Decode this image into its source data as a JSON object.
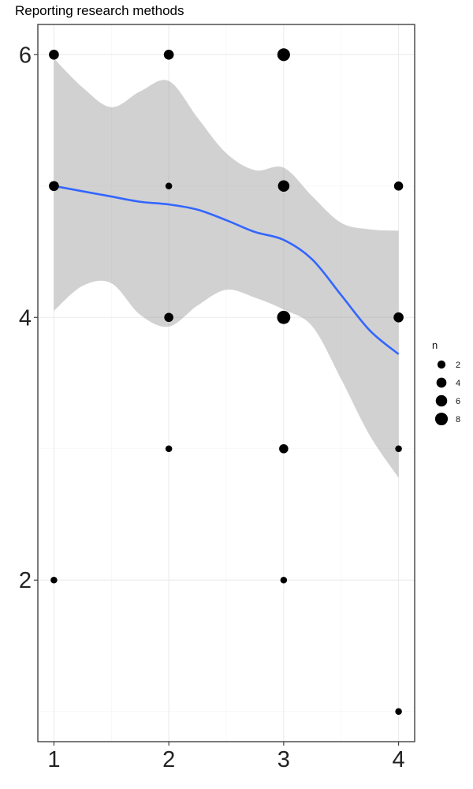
{
  "chart_data": {
    "type": "scatter",
    "title": "Reporting research methods",
    "xlabel": "",
    "ylabel": "",
    "xlim": [
      0.86,
      4.14
    ],
    "ylim": [
      0.77,
      6.23
    ],
    "x_ticks": [
      1,
      2,
      3,
      4
    ],
    "y_ticks": [
      2,
      4,
      6
    ],
    "x_tick_labels": [
      "1",
      "2",
      "3",
      "4"
    ],
    "y_tick_labels": [
      "2",
      "4",
      "6"
    ],
    "grid": true,
    "points": [
      {
        "x": 1,
        "y": 6,
        "n": 4
      },
      {
        "x": 2,
        "y": 6,
        "n": 4
      },
      {
        "x": 3,
        "y": 6,
        "n": 8
      },
      {
        "x": 1,
        "y": 5,
        "n": 4
      },
      {
        "x": 2,
        "y": 5,
        "n": 1
      },
      {
        "x": 3,
        "y": 5,
        "n": 6
      },
      {
        "x": 4,
        "y": 5,
        "n": 3
      },
      {
        "x": 2,
        "y": 4,
        "n": 3
      },
      {
        "x": 3,
        "y": 4,
        "n": 9
      },
      {
        "x": 4,
        "y": 4,
        "n": 4
      },
      {
        "x": 2,
        "y": 3,
        "n": 1
      },
      {
        "x": 3,
        "y": 3,
        "n": 3
      },
      {
        "x": 4,
        "y": 3,
        "n": 1
      },
      {
        "x": 1,
        "y": 2,
        "n": 1
      },
      {
        "x": 3,
        "y": 2,
        "n": 1
      },
      {
        "x": 4,
        "y": 1,
        "n": 1
      }
    ],
    "smooth_line": {
      "color": "#3366ff",
      "x": [
        1.0,
        1.25,
        1.5,
        1.75,
        2.0,
        2.25,
        2.5,
        2.75,
        3.0,
        3.25,
        3.5,
        3.75,
        4.0
      ],
      "y": [
        5.0,
        4.96,
        4.92,
        4.88,
        4.86,
        4.82,
        4.74,
        4.65,
        4.59,
        4.44,
        4.17,
        3.9,
        3.72
      ]
    },
    "ribbon": {
      "color": "#999999",
      "x": [
        1.0,
        1.25,
        1.5,
        1.75,
        2.0,
        2.25,
        2.5,
        2.75,
        3.0,
        3.25,
        3.5,
        3.75,
        4.0
      ],
      "upper": [
        5.97,
        5.75,
        5.6,
        5.72,
        5.8,
        5.52,
        5.25,
        5.12,
        5.14,
        4.92,
        4.72,
        4.67,
        4.66
      ],
      "lower": [
        4.05,
        4.24,
        4.26,
        4.02,
        3.93,
        4.09,
        4.21,
        4.15,
        4.06,
        3.93,
        3.53,
        3.1,
        2.78
      ]
    },
    "legend": {
      "title": "n",
      "position": "right",
      "entries": [
        {
          "label": "2",
          "n": 2
        },
        {
          "label": "4",
          "n": 4
        },
        {
          "label": "6",
          "n": 6
        },
        {
          "label": "8",
          "n": 8
        }
      ]
    },
    "colors": {
      "point": "#000000",
      "line": "#3366ff",
      "ribbon": "#999999",
      "panel_border": "#333333",
      "grid": "#ebebeb"
    }
  }
}
